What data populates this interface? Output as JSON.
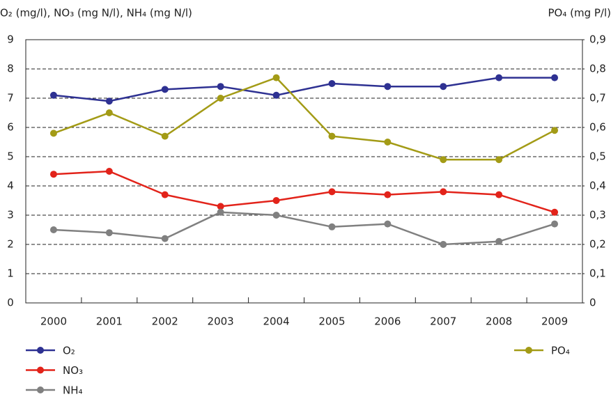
{
  "chart_data": {
    "type": "line",
    "y_label": "O₂ (mg/l), NO₃ (mg N/l), NH₄ (mg N/l)",
    "y2_label": "PO₄ (mg P/l)",
    "categories": [
      "2000",
      "2001",
      "2002",
      "2003",
      "2004",
      "2005",
      "2006",
      "2007",
      "2008",
      "2009"
    ],
    "series": [
      {
        "name": "O₂",
        "color": "#2e3192",
        "values": [
          7.1,
          6.9,
          7.3,
          7.4,
          7.1,
          7.5,
          7.4,
          7.4,
          7.7,
          7.7
        ]
      },
      {
        "name": "NO₃",
        "color": "#e2231a",
        "values": [
          4.4,
          4.5,
          3.7,
          3.3,
          3.5,
          3.8,
          3.7,
          3.8,
          3.7,
          3.1
        ]
      },
      {
        "name": "NH₄",
        "color": "#808080",
        "values": [
          2.5,
          2.4,
          2.2,
          3.1,
          3.0,
          2.6,
          2.7,
          2.0,
          2.1,
          2.7
        ]
      },
      {
        "name": "PO₄",
        "color": "#a39b16",
        "axis": "y2",
        "values": [
          0.58,
          0.65,
          0.57,
          0.7,
          0.77,
          0.57,
          0.55,
          0.49,
          0.49,
          0.59
        ]
      }
    ],
    "ylim": [
      0,
      9
    ],
    "yticks": [
      0,
      1,
      2,
      3,
      4,
      5,
      6,
      7,
      8,
      9
    ],
    "y2lim": [
      0,
      0.9
    ],
    "y2ticks": [
      0,
      {
        "value": 0.1,
        "label": "0,1"
      },
      {
        "value": 0.2,
        "label": "0,2"
      },
      {
        "value": 0.3,
        "label": "0,3"
      },
      {
        "value": 0.4,
        "label": "0,4"
      },
      {
        "value": 0.5,
        "label": "0,5"
      },
      {
        "value": 0.6,
        "label": "0,6"
      },
      {
        "value": 0.7,
        "label": "0,7"
      },
      {
        "value": 0.8,
        "label": "0,8"
      },
      {
        "value": 0.9,
        "label": "0,9"
      }
    ],
    "grid": true
  }
}
